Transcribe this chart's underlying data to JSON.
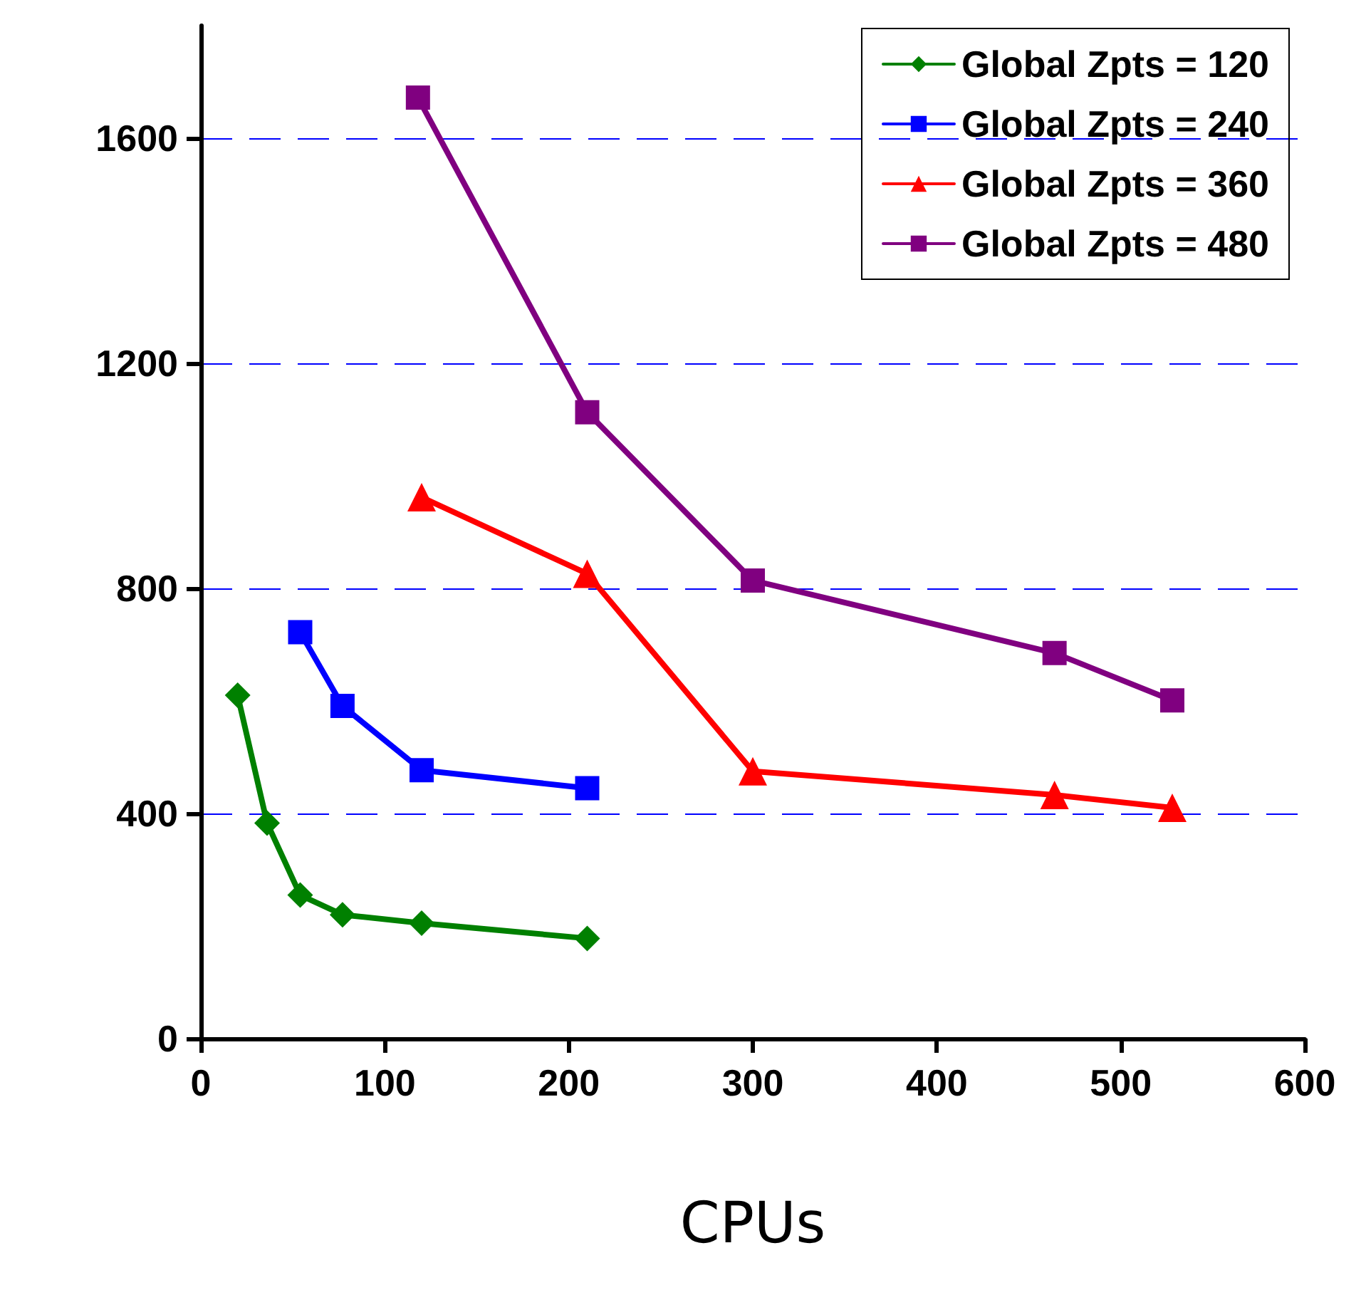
{
  "chart_data": {
    "type": "line",
    "xlabel": "CPUs",
    "xlim": [
      0,
      600
    ],
    "xticks": [
      0,
      100,
      200,
      300,
      400,
      500,
      600
    ],
    "ylim": [
      0,
      1800
    ],
    "yticks": [
      0,
      400,
      800,
      1200,
      1600
    ],
    "grid": "y",
    "legend": "top right",
    "series": [
      {
        "name": "Global Zpts = 120",
        "color": "#008000",
        "marker": "diamond",
        "x": [
          20,
          36,
          54,
          77,
          120,
          210
        ],
        "values": [
          610,
          383,
          255,
          220,
          205,
          178
        ]
      },
      {
        "name": "Global Zpts = 240",
        "color": "#0000ff",
        "marker": "square",
        "x": [
          54,
          77,
          120,
          210
        ],
        "values": [
          722,
          591,
          477,
          445
        ]
      },
      {
        "name": "Global Zpts = 360",
        "color": "#ff0000",
        "marker": "triangle",
        "x": [
          120,
          210,
          300,
          464,
          528
        ],
        "values": [
          962,
          826,
          475,
          433,
          410
        ]
      },
      {
        "name": "Global Zpts = 480",
        "color": "#800080",
        "marker": "square",
        "x": [
          118,
          210,
          300,
          464,
          528
        ],
        "values": [
          1672,
          1113,
          814,
          685,
          601
        ]
      }
    ]
  }
}
